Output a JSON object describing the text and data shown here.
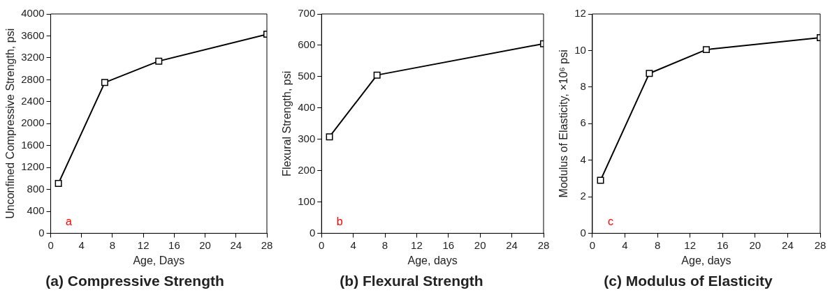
{
  "chart_data": [
    {
      "type": "line",
      "title": "(a) Compressive Strength",
      "xlabel": "Age, Days",
      "ylabel": "Unconfined Compressive Strength, psi",
      "x": [
        1,
        7,
        14,
        28
      ],
      "series": [
        {
          "color": "#000000",
          "values": [
            910,
            2750,
            3140,
            3630
          ]
        }
      ],
      "xlim": [
        0,
        28
      ],
      "xticks": [
        0,
        4,
        8,
        12,
        16,
        20,
        24,
        28
      ],
      "ylim": [
        0,
        4000
      ],
      "yticks": [
        0,
        400,
        800,
        1200,
        1600,
        2000,
        2400,
        2800,
        3200,
        3600,
        4000
      ],
      "annotations": [
        "a"
      ],
      "grid": false,
      "legend": false,
      "marker": "square",
      "line_style": "solid"
    },
    {
      "type": "line",
      "title": "(b) Flexural Strength",
      "xlabel": "Age, days",
      "ylabel": "Flexural Strength, psi",
      "x": [
        1,
        7,
        28
      ],
      "series": [
        {
          "color": "#000000",
          "values": [
            308,
            505,
            605
          ]
        }
      ],
      "xlim": [
        0,
        28
      ],
      "xticks": [
        0,
        4,
        8,
        12,
        16,
        20,
        24,
        28
      ],
      "ylim": [
        0,
        700
      ],
      "yticks": [
        0,
        100,
        200,
        300,
        400,
        500,
        600,
        700
      ],
      "annotations": [
        "b"
      ],
      "grid": false,
      "legend": false,
      "marker": "square",
      "line_style": "solid"
    },
    {
      "type": "line",
      "title": "(c) Modulus of Elasticity",
      "xlabel": "Age, days",
      "ylabel": "Modulus of Elasticity, ×10⁶ psi",
      "x": [
        1,
        7,
        14,
        28
      ],
      "series": [
        {
          "color": "#000000",
          "values": [
            2.9,
            8.75,
            10.05,
            10.7
          ]
        }
      ],
      "xlim": [
        0,
        28
      ],
      "xticks": [
        0,
        4,
        8,
        12,
        16,
        20,
        24,
        28
      ],
      "ylim": [
        0,
        12
      ],
      "yticks": [
        0,
        2,
        4,
        6,
        8,
        10,
        12
      ],
      "annotations": [
        "c"
      ],
      "grid": false,
      "legend": false,
      "marker": "square",
      "line_style": "solid"
    }
  ]
}
